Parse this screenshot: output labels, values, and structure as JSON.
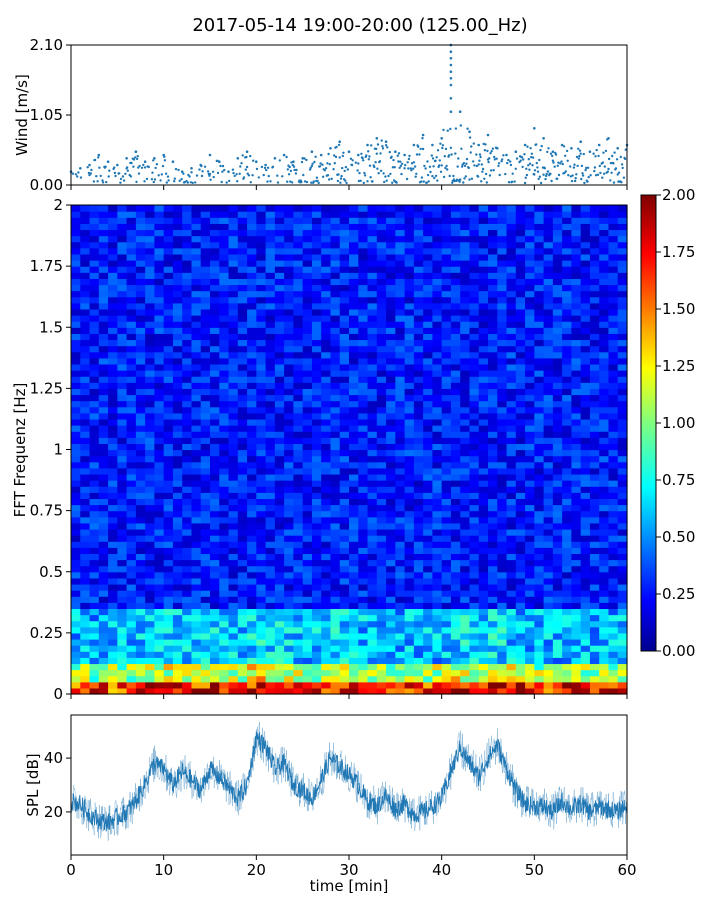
{
  "figure": {
    "title": "2017-05-14 19:00-20:00 (125.00_Hz)"
  },
  "chart_data": [
    {
      "type": "scatter",
      "panel": "wind",
      "ylabel": "Wind [m/s]",
      "xlabel": "",
      "xlim": [
        0,
        60
      ],
      "ylim": [
        0,
        2.1
      ],
      "yticks": [
        0.0,
        1.05,
        2.1
      ],
      "ytick_labels": [
        "0.00",
        "1.05",
        "2.10"
      ],
      "xticks": [
        0,
        10,
        20,
        30,
        40,
        50,
        60
      ],
      "color": "#1f77b4",
      "grid": false,
      "series": [
        {
          "x": [
            0,
            1,
            2,
            3,
            4,
            5,
            6,
            7,
            8,
            9,
            10,
            11,
            12,
            13,
            14,
            15,
            16,
            17,
            18,
            19,
            20,
            21,
            22,
            23,
            24,
            25,
            26,
            27,
            28,
            29,
            30,
            31,
            32,
            33,
            34,
            35,
            36,
            37,
            38,
            39,
            40,
            41,
            42,
            43,
            44,
            45,
            46,
            47,
            48,
            49,
            50,
            51,
            52,
            53,
            54,
            55,
            56,
            57,
            58,
            59,
            60
          ],
          "y": [
            0.2,
            0.25,
            0.3,
            0.45,
            0.35,
            0.3,
            0.4,
            0.5,
            0.35,
            0.4,
            0.45,
            0.35,
            0.2,
            0.25,
            0.3,
            0.45,
            0.35,
            0.2,
            0.4,
            0.5,
            0.35,
            0.3,
            0.4,
            0.45,
            0.35,
            0.4,
            0.5,
            0.45,
            0.55,
            0.65,
            0.5,
            0.45,
            0.6,
            0.7,
            0.65,
            0.5,
            0.45,
            0.6,
            0.75,
            0.6,
            0.7,
            2.1,
            1.1,
            0.8,
            0.6,
            0.75,
            0.55,
            0.45,
            0.5,
            0.6,
            0.85,
            0.7,
            0.5,
            0.6,
            0.55,
            0.65,
            0.5,
            0.6,
            0.7,
            0.55,
            0.6
          ]
        }
      ]
    },
    {
      "type": "heatmap",
      "panel": "spectrogram",
      "ylabel": "FFT Frequenz [Hz]",
      "xlabel": "",
      "xlim": [
        0,
        60
      ],
      "ylim": [
        0,
        2
      ],
      "yticks": [
        0,
        0.25,
        0.5,
        0.75,
        1,
        1.25,
        1.5,
        1.75,
        2
      ],
      "ytick_labels": [
        "0",
        "0.25",
        "0.5",
        "0.75",
        "1",
        "1.25",
        "1.5",
        "1.75",
        "2"
      ],
      "xticks": [
        0,
        10,
        20,
        30,
        40,
        50,
        60
      ],
      "colormap": "jet",
      "clim": [
        0,
        2
      ],
      "colorbar_ticks": [
        0.0,
        0.25,
        0.5,
        0.75,
        1.0,
        1.25,
        1.5,
        1.75,
        2.0
      ],
      "colorbar_tick_labels": [
        "0.00",
        "0.25",
        "0.50",
        "0.75",
        "1.00",
        "1.25",
        "1.50",
        "1.75",
        "2.00"
      ],
      "x_bins": 60,
      "y_bins": 80,
      "grid": false
    },
    {
      "type": "line",
      "panel": "spl",
      "ylabel": "SPL [dB]",
      "xlabel": "time [min]",
      "xlim": [
        0,
        60
      ],
      "ylim": [
        4,
        56
      ],
      "yticks": [
        20,
        40
      ],
      "ytick_labels": [
        "20",
        "40"
      ],
      "xticks": [
        0,
        10,
        20,
        30,
        40,
        50,
        60
      ],
      "xtick_labels": [
        "0",
        "10",
        "20",
        "30",
        "40",
        "50",
        "60"
      ],
      "color": "#1f77b4",
      "grid": false,
      "series": [
        {
          "x": [
            0,
            1,
            2,
            3,
            4,
            5,
            6,
            7,
            8,
            9,
            10,
            11,
            12,
            13,
            14,
            15,
            16,
            17,
            18,
            19,
            20,
            21,
            22,
            23,
            24,
            25,
            26,
            27,
            28,
            29,
            30,
            31,
            32,
            33,
            34,
            35,
            36,
            37,
            38,
            39,
            40,
            41,
            42,
            43,
            44,
            45,
            46,
            47,
            48,
            49,
            50,
            51,
            52,
            53,
            54,
            55,
            56,
            57,
            58,
            59,
            60
          ],
          "y": [
            24,
            23,
            19,
            17,
            16,
            18,
            20,
            24,
            31,
            38,
            36,
            30,
            35,
            32,
            28,
            36,
            33,
            29,
            25,
            30,
            48,
            44,
            36,
            38,
            30,
            28,
            25,
            32,
            40,
            37,
            34,
            30,
            24,
            22,
            26,
            21,
            23,
            19,
            20,
            22,
            25,
            35,
            44,
            38,
            33,
            40,
            45,
            36,
            28,
            23,
            22,
            22,
            20,
            24,
            21,
            23,
            20,
            22,
            21,
            20,
            23
          ]
        }
      ]
    }
  ]
}
